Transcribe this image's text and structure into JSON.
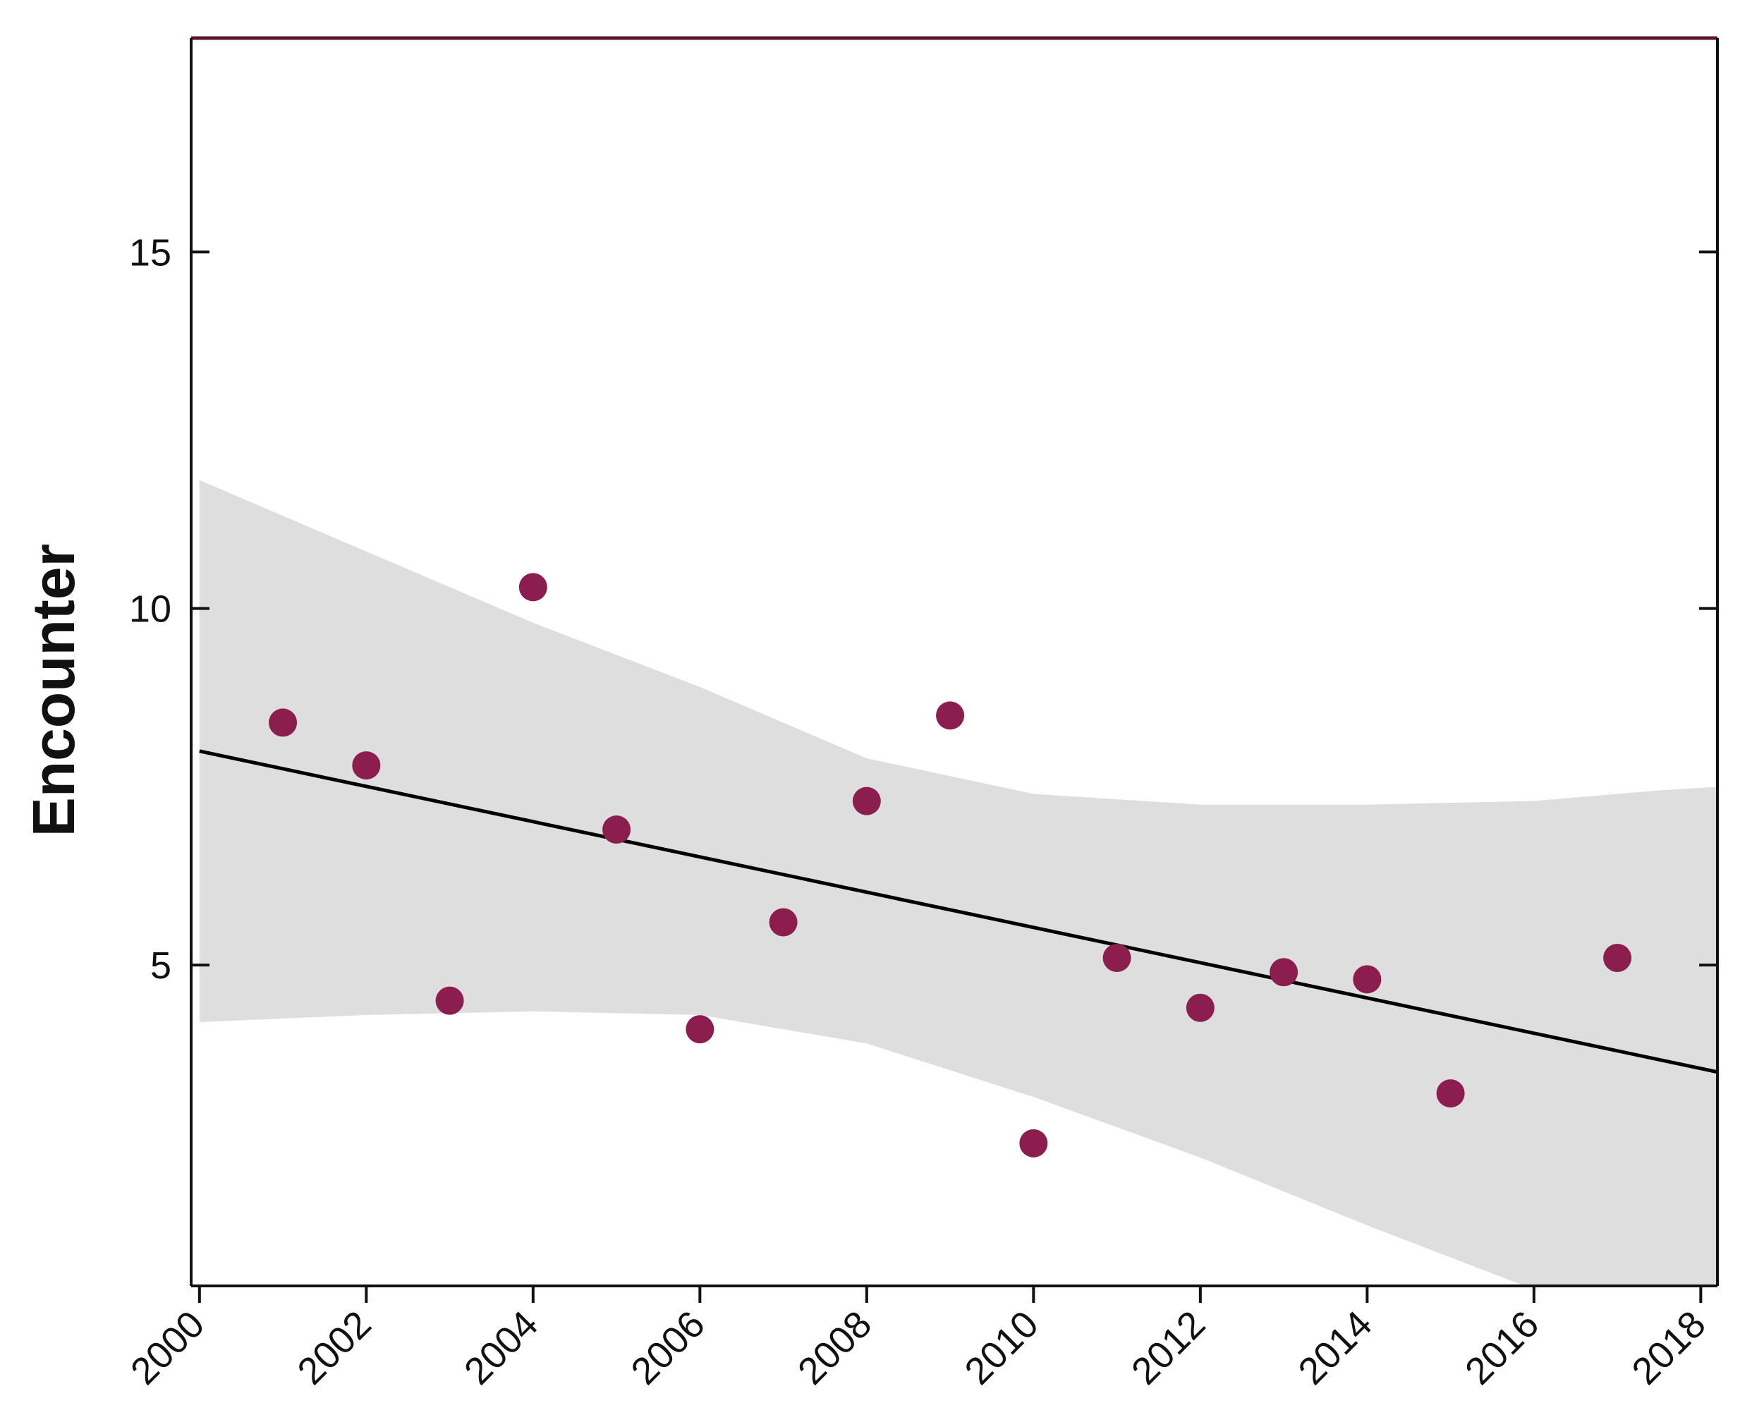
{
  "chart_data": {
    "type": "scatter",
    "title": "",
    "xlabel": "",
    "ylabel": "Encounter",
    "xlim": [
      1999.9,
      2018.2
    ],
    "ylim": [
      0.5,
      18
    ],
    "x_ticks": [
      "2000",
      "2002",
      "2004",
      "2006",
      "2008",
      "2010",
      "2012",
      "2014",
      "2016",
      "2018"
    ],
    "y_ticks": [
      "5",
      "10",
      "15"
    ],
    "grid": false,
    "legend": "none",
    "points": {
      "x": [
        2001,
        2002,
        2003,
        2004,
        2005,
        2006,
        2007,
        2008,
        2009,
        2010,
        2011,
        2012,
        2013,
        2014,
        2015,
        2017
      ],
      "y": [
        8.4,
        7.8,
        4.5,
        10.3,
        6.9,
        4.1,
        5.6,
        7.3,
        8.5,
        2.5,
        5.1,
        4.4,
        4.9,
        4.8,
        3.2,
        5.1
      ]
    },
    "trend_line": {
      "x": [
        2000,
        2018.2
      ],
      "y": [
        8.0,
        3.5
      ]
    },
    "confidence_band": {
      "x": [
        2000,
        2002,
        2004,
        2006,
        2008,
        2010,
        2012,
        2014,
        2016,
        2017.5,
        2018.2
      ],
      "upper": [
        11.8,
        10.8,
        9.8,
        8.9,
        7.9,
        7.4,
        7.25,
        7.25,
        7.3,
        7.45,
        7.5
      ],
      "lower": [
        4.2,
        4.3,
        4.35,
        4.3,
        3.9,
        3.15,
        2.3,
        1.35,
        0.45,
        -0.2,
        -0.5
      ]
    },
    "colors": {
      "points": "#8b1e4f",
      "trend_line": "#000000",
      "band": "#dedede",
      "frame": "#111111",
      "top_border": "#5a1630"
    }
  }
}
